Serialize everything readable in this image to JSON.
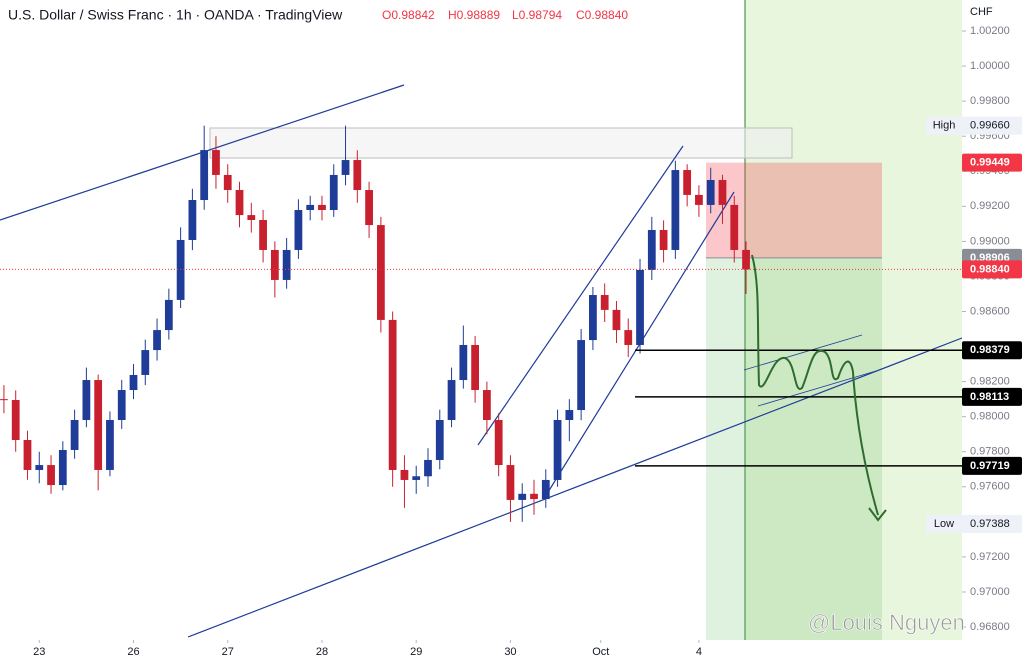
{
  "chart_data": {
    "type": "candlestick",
    "title": "U.S. Dollar / Swiss Franc · 1h · OANDA · TradingView",
    "ohlc_header": [
      "O0.98842",
      "H0.98889",
      "L0.98794",
      "C0.98840"
    ],
    "currency": "CHF",
    "up_color": "#1f3c99",
    "down_color": "#c9202f",
    "x": [
      -9,
      -6,
      -3,
      0,
      3,
      6,
      9,
      12,
      15,
      18,
      21,
      24,
      27,
      30,
      33,
      36,
      39,
      42,
      45,
      48,
      51,
      54,
      57,
      60,
      63,
      66,
      69,
      72,
      75,
      78,
      81,
      84,
      87,
      90,
      93,
      96,
      99,
      102,
      105,
      108,
      111,
      114,
      117,
      120,
      123,
      126,
      129,
      132,
      135,
      138,
      141,
      144,
      147,
      150,
      153,
      156,
      159,
      162,
      165,
      168,
      171,
      174,
      177,
      180
    ],
    "open": [
      0.981,
      0.98095,
      0.97867,
      0.97696,
      0.97724,
      0.9761,
      0.9781,
      0.97981,
      0.98209,
      0.97696,
      0.97981,
      0.98152,
      0.98238,
      0.9838,
      0.98494,
      0.98666,
      0.99008,
      0.99236,
      0.99521,
      0.99379,
      0.99293,
      0.9915,
      0.99122,
      0.98951,
      0.9878,
      0.98951,
      0.99179,
      0.99208,
      0.99179,
      0.99379,
      0.99464,
      0.99293,
      0.99093,
      0.98552,
      0.97696,
      0.97639,
      0.9766,
      0.97753,
      0.97981,
      0.98209,
      0.98409,
      0.98152,
      0.97981,
      0.97724,
      0.97525,
      0.9756,
      0.9753,
      0.97639,
      0.97981,
      0.98038,
      0.98437,
      0.98694,
      0.98609,
      0.98494,
      0.98409,
      0.98837,
      0.99065,
      0.98951,
      0.99407,
      0.99265,
      0.99208,
      0.9935,
      0.99208,
      0.98951
    ],
    "high": [
      0.9818,
      0.9815,
      0.9792,
      0.978,
      0.9778,
      0.9786,
      0.9804,
      0.9828,
      0.9824,
      0.9803,
      0.9821,
      0.983,
      0.9844,
      0.9856,
      0.9873,
      0.9908,
      0.993,
      0.9966,
      0.996,
      0.9944,
      0.9934,
      0.9922,
      0.9918,
      0.99,
      0.9902,
      0.9924,
      0.9926,
      0.9926,
      0.9944,
      0.9966,
      0.9952,
      0.9934,
      0.9914,
      0.986,
      0.9778,
      0.9772,
      0.9782,
      0.9804,
      0.9828,
      0.9852,
      0.9846,
      0.982,
      0.9802,
      0.9778,
      0.9762,
      0.9764,
      0.977,
      0.9804,
      0.981,
      0.985,
      0.9874,
      0.9876,
      0.9866,
      0.9856,
      0.989,
      0.9914,
      0.9912,
      0.9946,
      0.9944,
      0.9932,
      0.9942,
      0.9938,
      0.9926,
      0.99
    ],
    "low": [
      0.9802,
      0.978,
      0.9764,
      0.9762,
      0.9756,
      0.9758,
      0.9776,
      0.9794,
      0.9758,
      0.9766,
      0.9793,
      0.981,
      0.9818,
      0.9832,
      0.9844,
      0.9862,
      0.9895,
      0.9918,
      0.993,
      0.9922,
      0.9908,
      0.9905,
      0.9888,
      0.9868,
      0.9873,
      0.989,
      0.9912,
      0.9912,
      0.9914,
      0.9932,
      0.9922,
      0.9902,
      0.9848,
      0.976,
      0.9748,
      0.9756,
      0.976,
      0.977,
      0.9794,
      0.9816,
      0.9808,
      0.979,
      0.9766,
      0.974,
      0.974,
      0.9744,
      0.9748,
      0.976,
      0.9786,
      0.9798,
      0.9838,
      0.9854,
      0.9842,
      0.9834,
      0.9836,
      0.9878,
      0.9888,
      0.989,
      0.992,
      0.9914,
      0.9916,
      0.991,
      0.9888,
      0.987
    ],
    "close": [
      0.98095,
      0.97867,
      0.97696,
      0.97724,
      0.9761,
      0.9781,
      0.97981,
      0.98209,
      0.97696,
      0.97981,
      0.98152,
      0.98238,
      0.9838,
      0.98494,
      0.98666,
      0.99008,
      0.99236,
      0.99521,
      0.99379,
      0.99293,
      0.9915,
      0.99122,
      0.98951,
      0.9878,
      0.98951,
      0.99179,
      0.99208,
      0.99179,
      0.99379,
      0.99464,
      0.99293,
      0.99093,
      0.98552,
      0.97696,
      0.97639,
      0.9766,
      0.97753,
      0.97981,
      0.98209,
      0.98409,
      0.98152,
      0.97981,
      0.97724,
      0.97525,
      0.9756,
      0.9753,
      0.97639,
      0.97981,
      0.98038,
      0.98437,
      0.98694,
      0.98609,
      0.98494,
      0.98409,
      0.98837,
      0.99065,
      0.98951,
      0.99407,
      0.99265,
      0.99208,
      0.9935,
      0.99208,
      0.98951,
      0.9884
    ],
    "xlim": [
      -10,
      235
    ],
    "xticks": [
      {
        "value": 0,
        "label": "23"
      },
      {
        "value": 24,
        "label": "26"
      },
      {
        "value": 48,
        "label": "27"
      },
      {
        "value": 72,
        "label": "28"
      },
      {
        "value": 96,
        "label": "29"
      },
      {
        "value": 120,
        "label": "30"
      },
      {
        "value": 143,
        "label": "Oct"
      },
      {
        "value": 168,
        "label": "4"
      }
    ],
    "ylim": [
      0.96726,
      1.00377
    ],
    "yticks": [
      {
        "value": 1.002,
        "label": "1.00200"
      },
      {
        "value": 1.0,
        "label": "1.00000"
      },
      {
        "value": 0.998,
        "label": "0.99800"
      },
      {
        "value": 0.996,
        "label": "0.99600"
      },
      {
        "value": 0.994,
        "label": "0.99400"
      },
      {
        "value": 0.992,
        "label": "0.99200"
      },
      {
        "value": 0.99,
        "label": "0.99000"
      },
      {
        "value": 0.988,
        "label": "0.98800"
      },
      {
        "value": 0.986,
        "label": "0.98600"
      },
      {
        "value": 0.984,
        "label": "0.98400"
      },
      {
        "value": 0.982,
        "label": "0.98200"
      },
      {
        "value": 0.98,
        "label": "0.98000"
      },
      {
        "value": 0.978,
        "label": "0.97800"
      },
      {
        "value": 0.976,
        "label": "0.97600"
      },
      {
        "value": 0.974,
        "label": "0.97400"
      },
      {
        "value": 0.972,
        "label": "0.97200"
      },
      {
        "value": 0.97,
        "label": "0.97000"
      },
      {
        "value": 0.968,
        "label": "0.96800"
      }
    ],
    "grid": false,
    "price_labels": [
      {
        "value": 0.99449,
        "label": "0.99449",
        "color": "#f23645"
      },
      {
        "value": 0.98906,
        "label": "0.98906",
        "color": "#8a8d96"
      },
      {
        "value": 0.9884,
        "label": "0.98840",
        "color": "#f23645"
      },
      {
        "value": 0.98379,
        "label": "0.98379",
        "color": "#000000"
      },
      {
        "value": 0.98113,
        "label": "0.98113",
        "color": "#000000"
      },
      {
        "value": 0.97719,
        "label": "0.97719",
        "color": "#000000"
      }
    ],
    "extremes": [
      {
        "name": "High",
        "value": 0.9966,
        "label": "0.99660"
      },
      {
        "name": "Low",
        "value": 0.97388,
        "label": "0.97388"
      }
    ],
    "watermark": "@Louis Nguyen"
  }
}
